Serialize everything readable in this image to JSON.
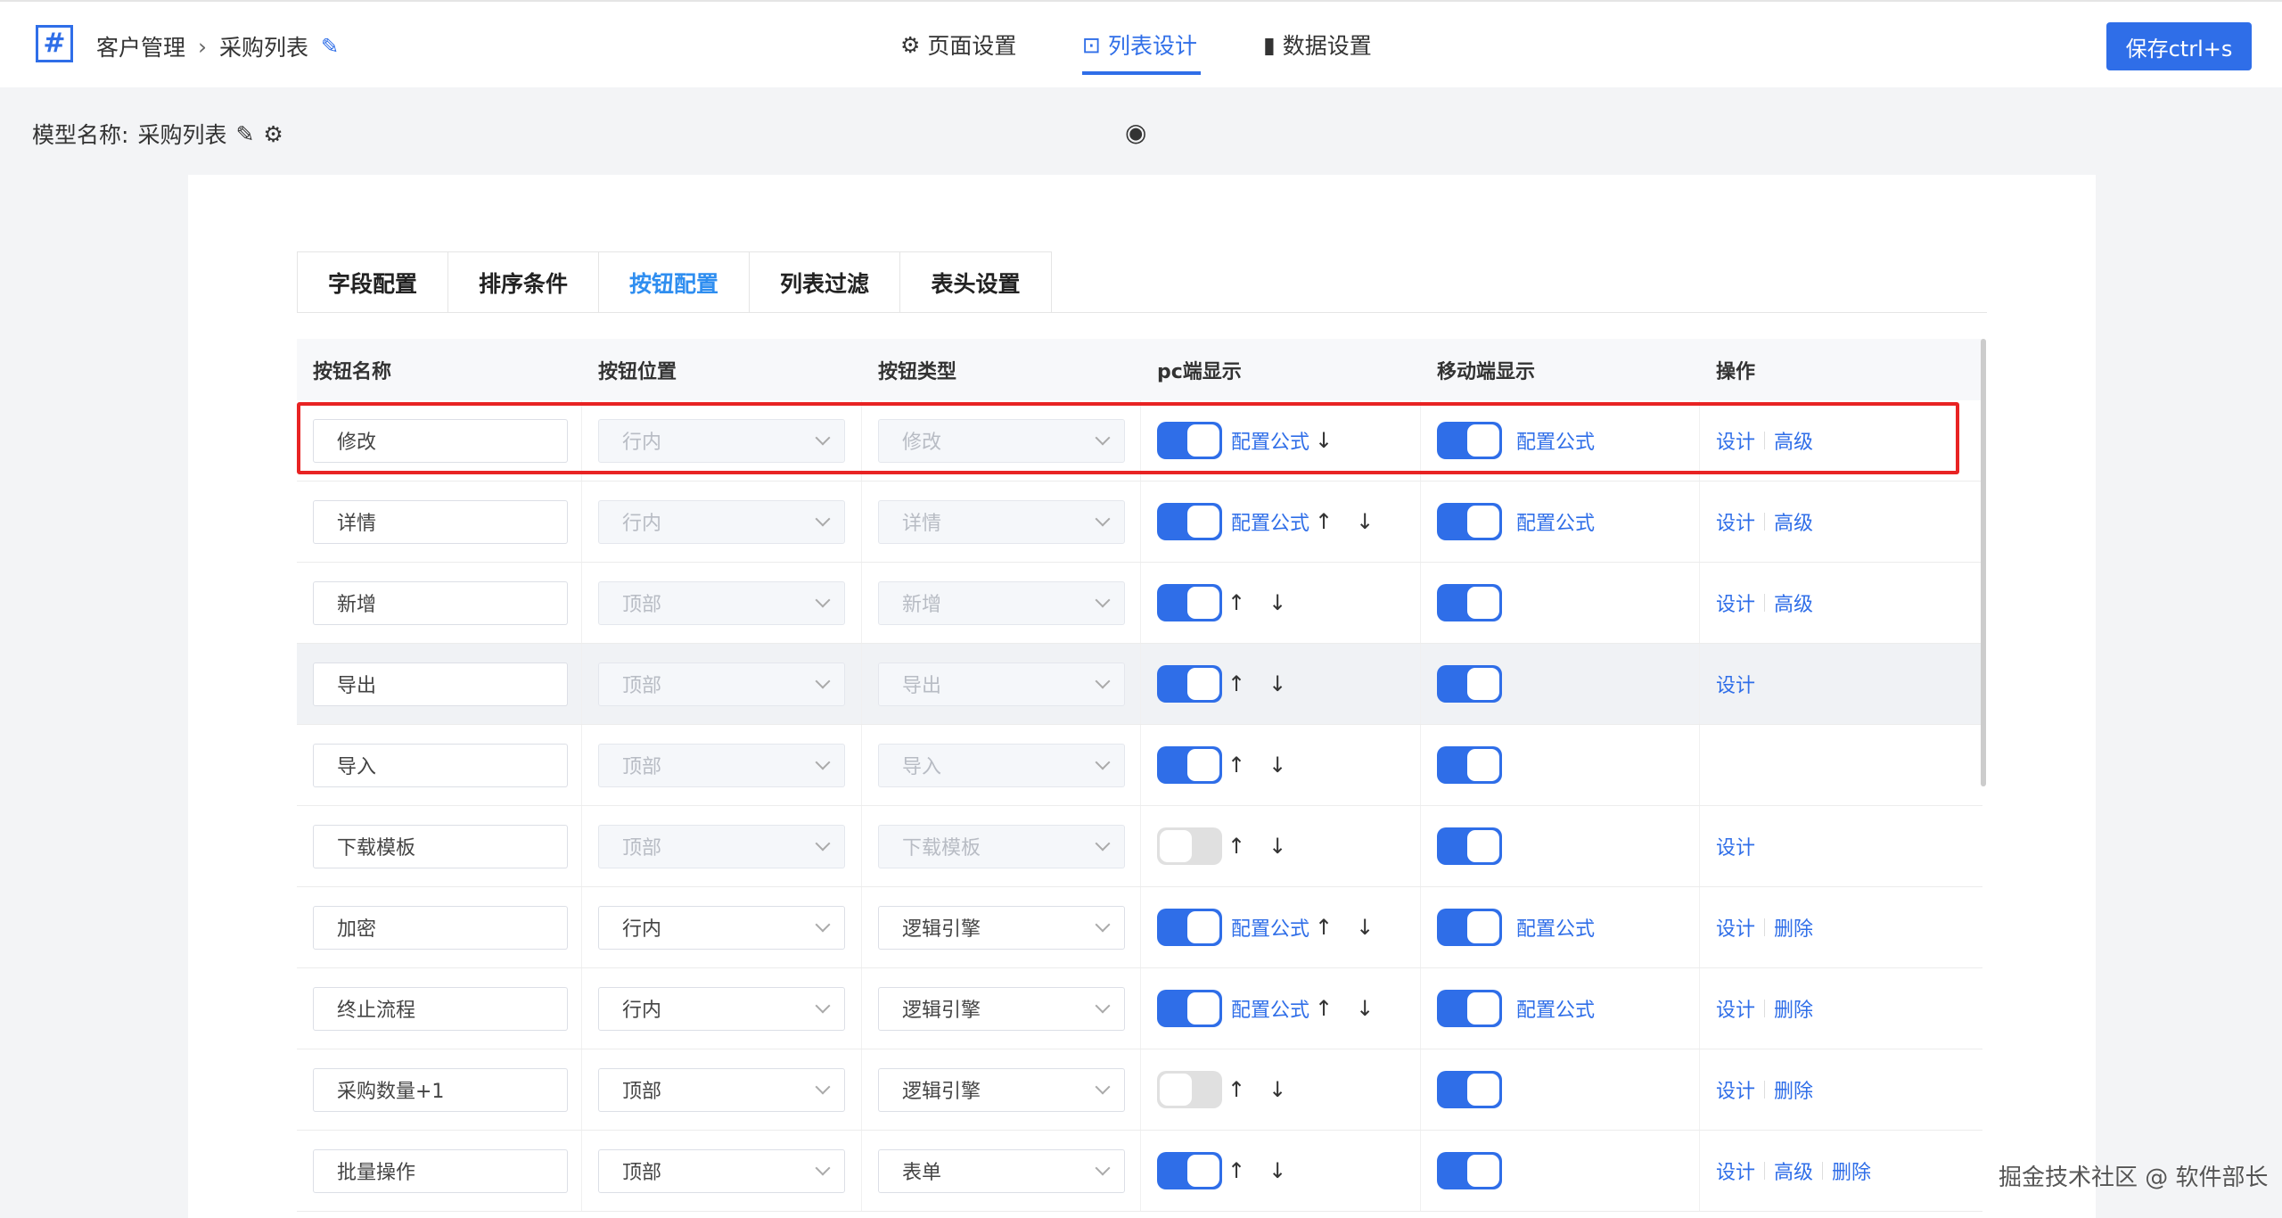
{
  "header": {
    "logo": "#",
    "breadcrumb": [
      "客户管理",
      "采购列表"
    ],
    "nav": [
      {
        "label": "页面设置",
        "icon": "gear-icon"
      },
      {
        "label": "列表设计",
        "icon": "board-icon",
        "active": true
      },
      {
        "label": "数据设置",
        "icon": "bar-chart-icon"
      }
    ],
    "save_label": "保存ctrl+s"
  },
  "model": {
    "label": "模型名称:",
    "name": "采购列表"
  },
  "tabs": [
    {
      "label": "字段配置"
    },
    {
      "label": "排序条件"
    },
    {
      "label": "按钮配置",
      "active": true
    },
    {
      "label": "列表过滤"
    },
    {
      "label": "表头设置"
    }
  ],
  "columns": [
    "按钮名称",
    "按钮位置",
    "按钮类型",
    "pc端显示",
    "移动端显示",
    "操作"
  ],
  "colors": {
    "accent": "#2f6ee8",
    "highlight_box": "#e82323"
  },
  "rows": [
    {
      "name": "修改",
      "position": "行内",
      "type": "修改",
      "disabled": true,
      "pc_on": true,
      "pc_formula": "配置公式",
      "pc_arrows": [
        "↓"
      ],
      "mobile_on": true,
      "mobile_formula": "配置公式",
      "ops": [
        "设计",
        "高级"
      ]
    },
    {
      "name": "详情",
      "position": "行内",
      "type": "详情",
      "disabled": true,
      "pc_on": true,
      "pc_formula": "配置公式",
      "pc_arrows": [
        "↑",
        "↓"
      ],
      "mobile_on": true,
      "mobile_formula": "配置公式",
      "ops": [
        "设计",
        "高级"
      ]
    },
    {
      "name": "新增",
      "position": "顶部",
      "type": "新增",
      "disabled": true,
      "pc_on": true,
      "pc_arrows": [
        "↑",
        "↓"
      ],
      "mobile_on": true,
      "ops": [
        "设计",
        "高级"
      ]
    },
    {
      "name": "导出",
      "position": "顶部",
      "type": "导出",
      "disabled": true,
      "pc_on": true,
      "pc_arrows": [
        "↑",
        "↓"
      ],
      "mobile_on": true,
      "ops": [
        "设计"
      ],
      "hover": true
    },
    {
      "name": "导入",
      "position": "顶部",
      "type": "导入",
      "disabled": true,
      "pc_on": true,
      "pc_arrows": [
        "↑",
        "↓"
      ],
      "mobile_on": true,
      "ops": []
    },
    {
      "name": "下载模板",
      "position": "顶部",
      "type": "下载模板",
      "disabled": true,
      "pc_on": false,
      "pc_arrows": [
        "↑",
        "↓"
      ],
      "mobile_on": true,
      "ops": [
        "设计"
      ]
    },
    {
      "name": "加密",
      "position": "行内",
      "type": "逻辑引擎",
      "disabled": false,
      "pc_on": true,
      "pc_formula": "配置公式",
      "pc_arrows": [
        "↑",
        "↓"
      ],
      "mobile_on": true,
      "mobile_formula": "配置公式",
      "ops": [
        "设计",
        "删除"
      ]
    },
    {
      "name": "终止流程",
      "position": "行内",
      "type": "逻辑引擎",
      "disabled": false,
      "pc_on": true,
      "pc_formula": "配置公式",
      "pc_arrows": [
        "↑",
        "↓"
      ],
      "mobile_on": true,
      "mobile_formula": "配置公式",
      "ops": [
        "设计",
        "删除"
      ]
    },
    {
      "name": "采购数量+1",
      "position": "顶部",
      "type": "逻辑引擎",
      "disabled": false,
      "pc_on": false,
      "pc_arrows": [
        "↑",
        "↓"
      ],
      "mobile_on": true,
      "ops": [
        "设计",
        "删除"
      ]
    },
    {
      "name": "批量操作",
      "position": "顶部",
      "type": "表单",
      "disabled": false,
      "pc_on": true,
      "pc_arrows": [
        "↑",
        "↓"
      ],
      "mobile_on": true,
      "ops": [
        "设计",
        "高级",
        "删除"
      ]
    }
  ],
  "watermark": "掘金技术社区 @ 软件部长"
}
